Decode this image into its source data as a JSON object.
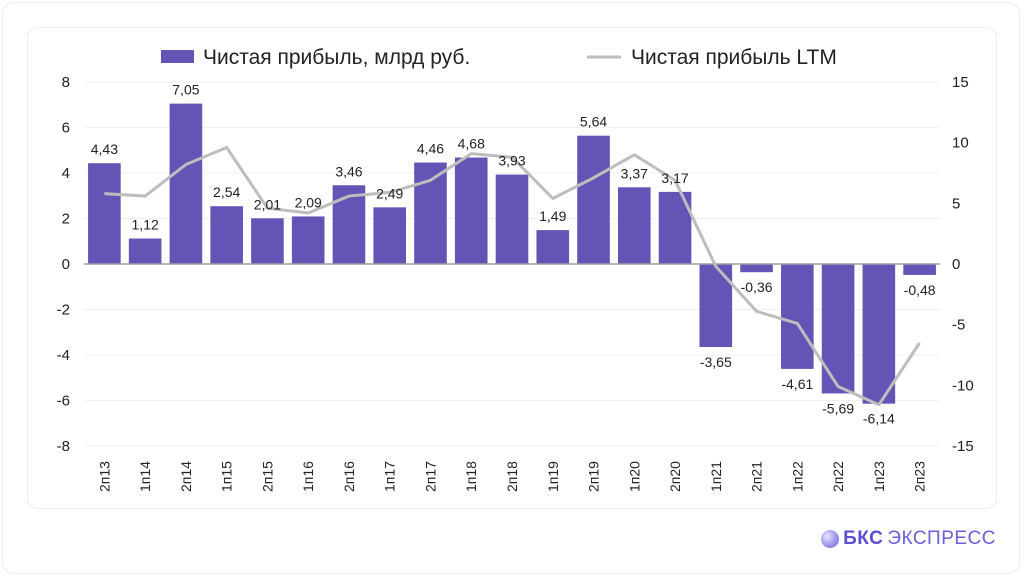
{
  "chart_data": {
    "type": "bar",
    "title": "",
    "legend_position": "top",
    "categories": [
      "2п13",
      "1п14",
      "2п14",
      "1п15",
      "2п15",
      "1п16",
      "2п16",
      "1п17",
      "2п17",
      "1п18",
      "2п18",
      "1п19",
      "2п19",
      "1п20",
      "2п20",
      "1п21",
      "2п21",
      "1п22",
      "2п22",
      "1п23",
      "2п23"
    ],
    "series": [
      {
        "name": "Чистая прибыль, млрд руб.",
        "type": "bar",
        "axis": "left",
        "color": "#6554b5",
        "values": [
          4.43,
          1.12,
          7.05,
          2.54,
          2.01,
          2.09,
          3.46,
          2.49,
          4.46,
          4.68,
          3.93,
          1.49,
          5.64,
          3.37,
          3.17,
          -3.65,
          -0.36,
          -4.61,
          -5.69,
          -6.14,
          -0.48
        ],
        "labels": [
          "4,43",
          "1,12",
          "7,05",
          "2,54",
          "2,01",
          "2,09",
          "3,46",
          "2,49",
          "4,46",
          "4,68",
          "3,93",
          "1,49",
          "5,64",
          "3,37",
          "3,17",
          "-3,65",
          "-0,36",
          "-4,61",
          "-5,69",
          "-6,14",
          "-0,48"
        ]
      },
      {
        "name": "Чистая прибыль LTM",
        "type": "line",
        "axis": "right",
        "color": "#bdbdbd",
        "values": [
          5.8,
          5.6,
          8.2,
          9.6,
          4.6,
          4.2,
          5.6,
          5.9,
          6.9,
          9.1,
          8.8,
          5.4,
          7.1,
          9.0,
          6.9,
          -0.2,
          -3.9,
          -4.9,
          -10.1,
          -11.6,
          -6.5
        ]
      }
    ],
    "y_left": {
      "ylim": [
        -8,
        8
      ],
      "ticks": [
        "8",
        "6",
        "4",
        "2",
        "0",
        "-2",
        "-4",
        "-6",
        "-8"
      ],
      "tick_values": [
        8,
        6,
        4,
        2,
        0,
        -2,
        -4,
        -6,
        -8
      ]
    },
    "y_right": {
      "ylim": [
        -15,
        15
      ],
      "ticks": [
        "15",
        "10",
        "5",
        "0",
        "-5",
        "-10",
        "-15"
      ],
      "tick_values": [
        15,
        10,
        5,
        0,
        -5,
        -10,
        -15
      ]
    },
    "grid": true,
    "xlabel": "",
    "ylabel": ""
  },
  "brand": {
    "bold": "БКС",
    "light": "ЭКСПРЕСС"
  }
}
